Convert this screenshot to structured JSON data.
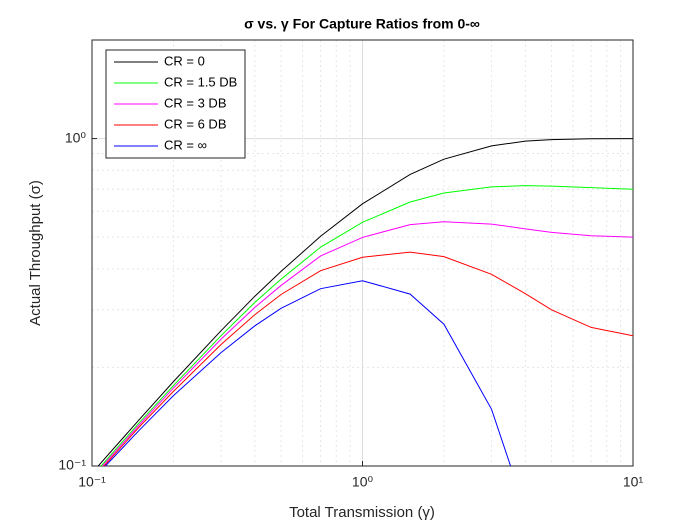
{
  "chart_data": {
    "type": "line",
    "title": "σ vs. γ For Capture Ratios from 0-∞",
    "xlabel": "Total Transmission (γ)",
    "ylabel": "Actual Throughput (σ)",
    "xscale": "log",
    "yscale": "log",
    "grid": true,
    "legend": "northwest",
    "xlim": [
      0.1,
      10
    ],
    "ylim": [
      0.1,
      2
    ],
    "xticks": [
      {
        "value": 0.1,
        "label": "10⁻¹"
      },
      {
        "value": 1,
        "label": "10⁰"
      },
      {
        "value": 10,
        "label": "10¹"
      }
    ],
    "yticks": [
      {
        "value": 0.1,
        "label": "10⁻¹"
      },
      {
        "value": 1,
        "label": "10⁰"
      }
    ],
    "xminor": [
      0.2,
      0.3,
      0.4,
      0.5,
      0.6,
      0.7,
      0.8,
      0.9,
      2,
      3,
      4,
      5,
      6,
      7,
      8,
      9
    ],
    "yminor": [
      0.2,
      0.3,
      0.4,
      0.5,
      0.6,
      0.7,
      0.8,
      0.9,
      2
    ],
    "x": [
      0.1,
      0.15,
      0.2,
      0.3,
      0.4,
      0.5,
      0.7,
      1,
      1.5,
      2,
      3,
      4,
      5,
      7,
      10
    ],
    "series": [
      {
        "name": "CR = 0",
        "color": "#000000",
        "values": [
          0.0952,
          0.139,
          0.181,
          0.259,
          0.33,
          0.393,
          0.503,
          0.632,
          0.777,
          0.865,
          0.95,
          0.982,
          0.993,
          0.999,
          1.0
        ]
      },
      {
        "name": "CR = 1.5 DB",
        "color": "#00ff00",
        "values": [
          0.093,
          0.136,
          0.176,
          0.25,
          0.316,
          0.372,
          0.466,
          0.555,
          0.64,
          0.682,
          0.712,
          0.718,
          0.716,
          0.708,
          0.7
        ]
      },
      {
        "name": "CR = 3 DB",
        "color": "#ff00ff",
        "values": [
          0.092,
          0.134,
          0.173,
          0.244,
          0.305,
          0.356,
          0.438,
          0.499,
          0.546,
          0.557,
          0.548,
          0.53,
          0.517,
          0.505,
          0.5
        ]
      },
      {
        "name": "CR = 6 DB",
        "color": "#ff0000",
        "values": [
          0.091,
          0.132,
          0.169,
          0.235,
          0.29,
          0.334,
          0.395,
          0.434,
          0.45,
          0.436,
          0.385,
          0.336,
          0.3,
          0.265,
          0.25
        ]
      },
      {
        "name": "CR = ∞",
        "color": "#0000ff",
        "values": [
          0.0905,
          0.129,
          0.164,
          0.222,
          0.268,
          0.303,
          0.348,
          0.368,
          0.335,
          0.271,
          0.149,
          0.0733,
          null,
          null,
          null
        ]
      }
    ]
  }
}
